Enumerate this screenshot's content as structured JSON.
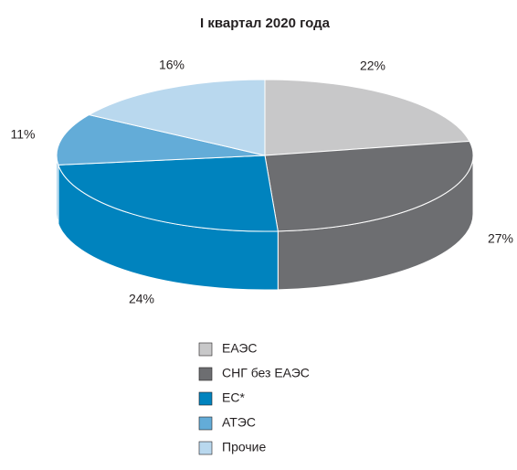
{
  "chart_data": {
    "type": "pie3d",
    "title": "I квартал 2020 года",
    "categories": [
      "ЕАЭС",
      "СНГ без ЕАЭС",
      "ЕС*",
      "АТЭС",
      "Прочие"
    ],
    "values": [
      22,
      27,
      24,
      11,
      16
    ],
    "value_labels": [
      "22%",
      "27%",
      "24%",
      "11%",
      "16%"
    ],
    "colors": [
      "#c8c8c9",
      "#6d6e71",
      "#0083be",
      "#63acd8",
      "#b9d8ee"
    ],
    "legend": "bottom"
  }
}
